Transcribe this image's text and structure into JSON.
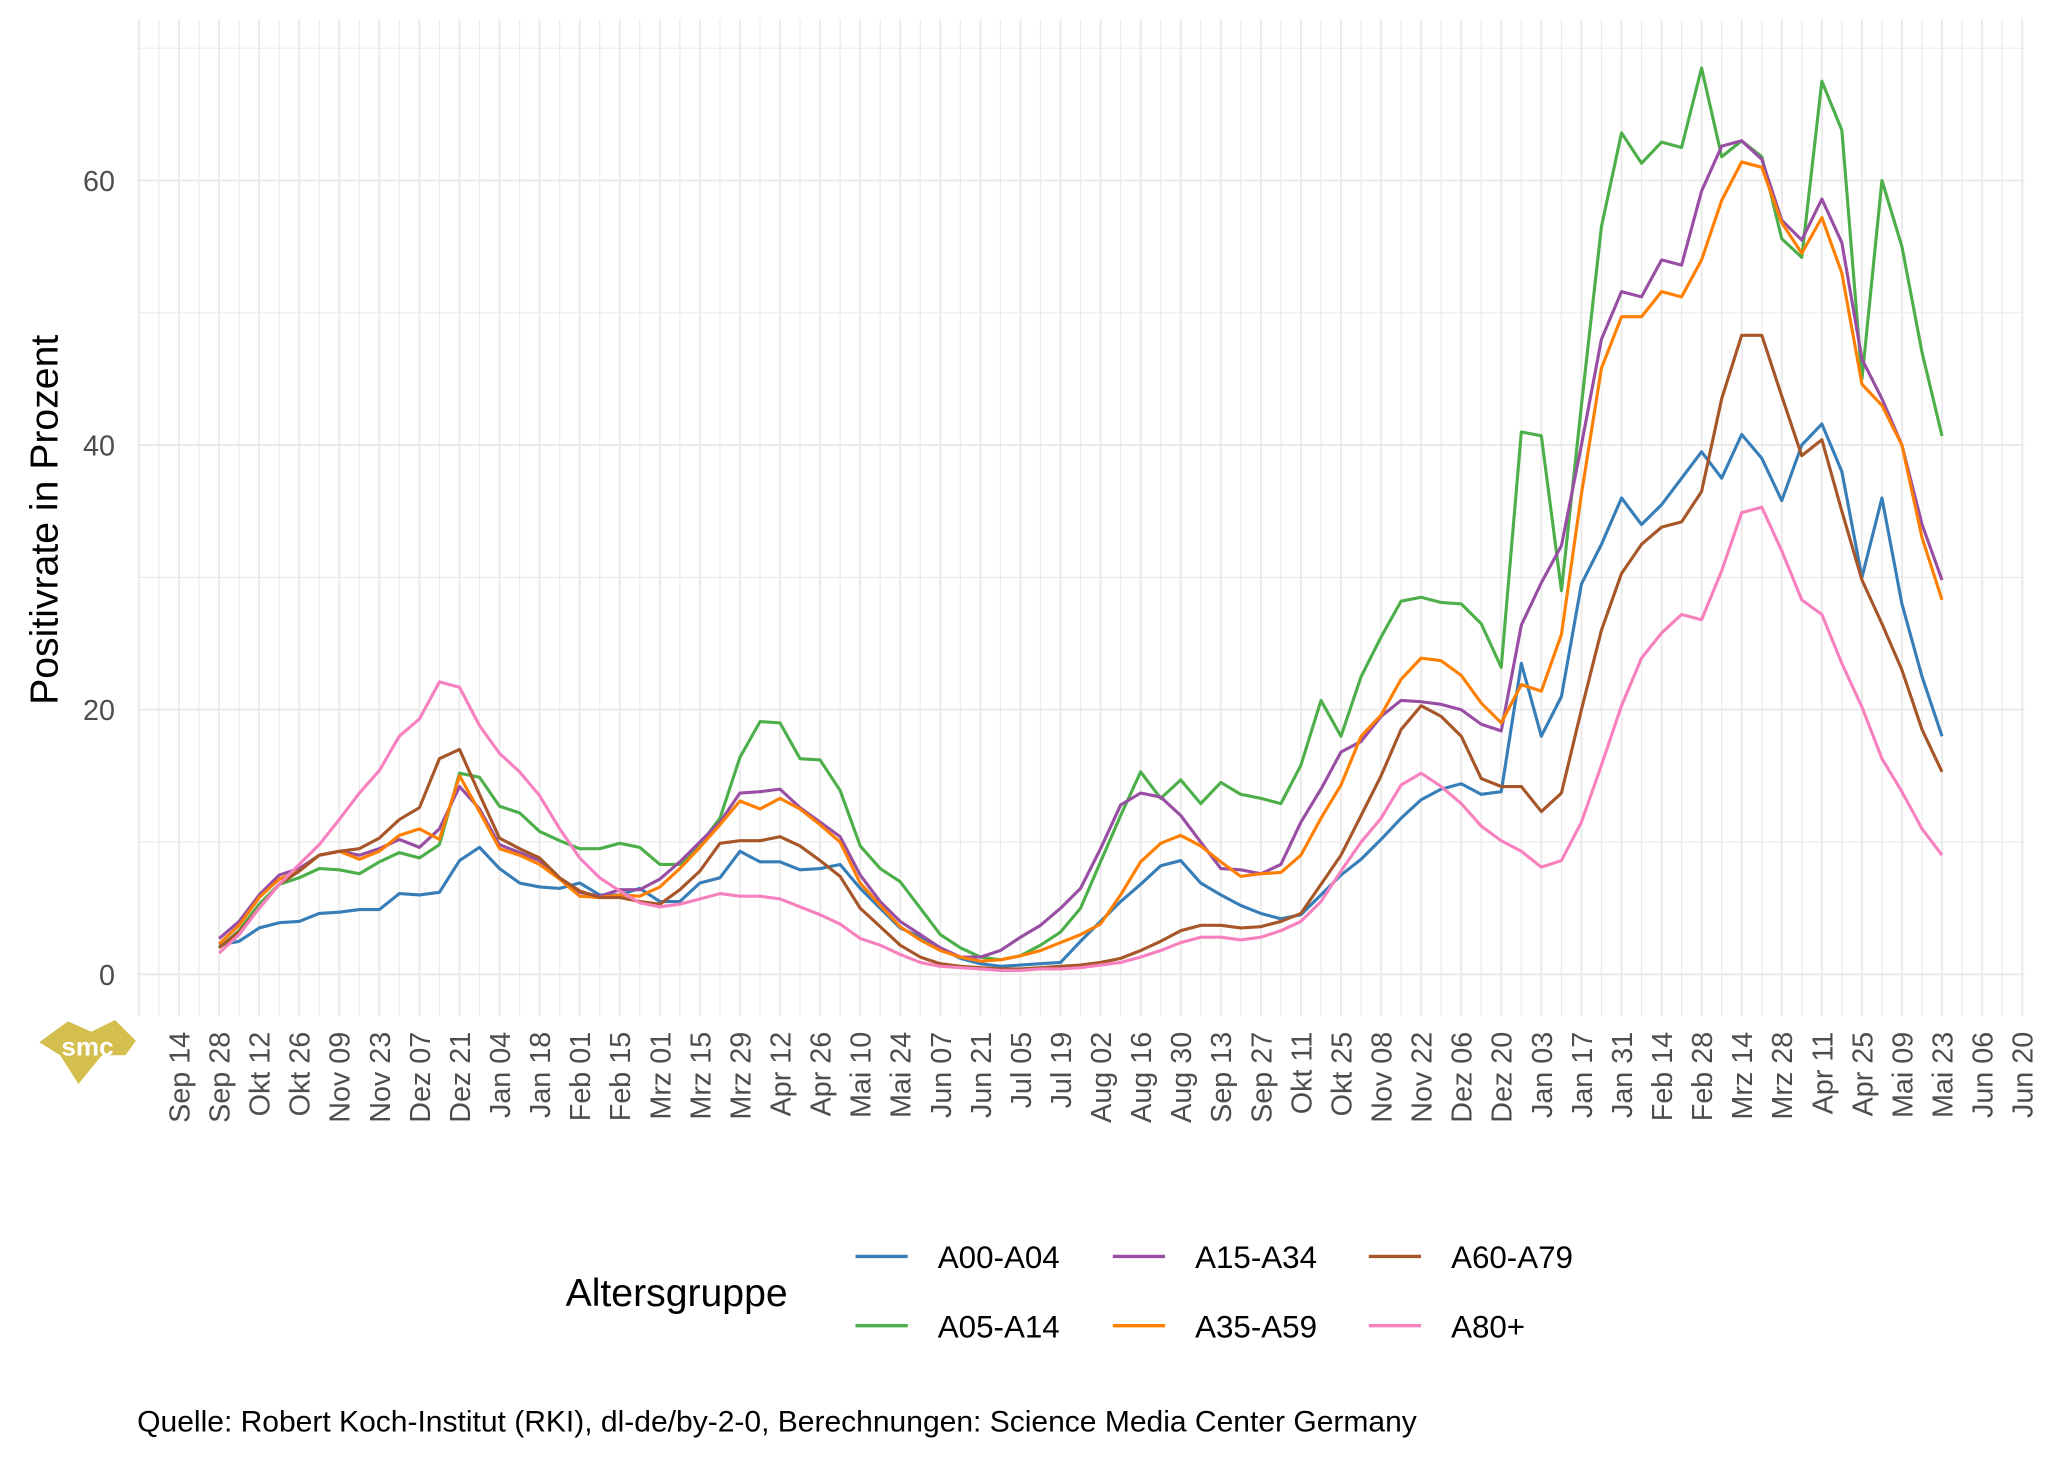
{
  "chart_data": {
    "type": "line",
    "title": "",
    "xlabel": "",
    "ylabel": "Positivrate in Prozent",
    "ylim": [
      -3.5,
      72
    ],
    "yticks": [
      0,
      20,
      40,
      60
    ],
    "grid": true,
    "x_start_week_offset": 2,
    "xtick_labels": [
      "Sep 14",
      "Sep 28",
      "Okt 12",
      "Okt 26",
      "Nov 09",
      "Nov 23",
      "Dez 07",
      "Dez 21",
      "Jan 04",
      "Jan 18",
      "Feb 01",
      "Feb 15",
      "Mrz 01",
      "Mrz 15",
      "Mrz 29",
      "Apr 12",
      "Apr 26",
      "Mai 10",
      "Mai 24",
      "Jun 07",
      "Jun 21",
      "Jul 05",
      "Jul 19",
      "Aug 02",
      "Aug 16",
      "Aug 30",
      "Sep 13",
      "Sep 27",
      "Okt 11",
      "Okt 25",
      "Nov 08",
      "Nov 22",
      "Dez 06",
      "Dez 20",
      "Jan 03",
      "Jan 17",
      "Jan 31",
      "Feb 14",
      "Feb 28",
      "Mrz 14",
      "Mrz 28",
      "Apr 11",
      "Apr 25",
      "Mai 09",
      "Mai 23",
      "Jun 06",
      "Jun 20"
    ],
    "x_note": "weekly values from Sep 28 to Mai 23 (87 weeks)",
    "legend": {
      "title": "Altersgruppe",
      "placement": "bottom"
    },
    "series": [
      {
        "name": "A00-A04",
        "color": "#377eb8",
        "values": [
          2.2,
          2.5,
          3.5,
          3.9,
          4.0,
          4.6,
          4.7,
          4.9,
          4.9,
          6.1,
          6.0,
          6.2,
          8.6,
          9.6,
          8.0,
          6.9,
          6.6,
          6.5,
          6.9,
          6.0,
          6.0,
          6.5,
          5.5,
          5.5,
          6.9,
          7.3,
          9.3,
          8.5,
          8.5,
          7.9,
          8.0,
          8.3,
          6.5,
          5.0,
          3.5,
          2.8,
          2.0,
          1.2,
          0.8,
          0.6,
          0.7,
          0.8,
          0.9,
          2.5,
          4.0,
          5.5,
          6.8,
          8.2,
          8.6,
          6.9,
          6.0,
          5.2,
          4.6,
          4.2,
          4.5,
          6.0,
          7.5,
          8.7,
          10.2,
          11.8,
          13.2,
          14.0,
          14.4,
          13.6,
          13.8,
          23.5,
          18.0,
          21.0,
          29.5,
          32.5,
          36.0,
          34.0,
          35.5,
          37.5,
          39.5,
          37.5,
          40.8,
          39.0,
          35.8,
          40.0,
          41.6,
          38.0,
          30.0,
          36.0,
          28.0,
          22.5,
          18.0
        ]
      },
      {
        "name": "A05-A14",
        "color": "#4daf4a",
        "values": [
          2.0,
          3.3,
          5.3,
          6.8,
          7.3,
          8.0,
          7.9,
          7.6,
          8.5,
          9.2,
          8.8,
          9.8,
          15.2,
          14.9,
          12.7,
          12.2,
          10.8,
          10.1,
          9.5,
          9.5,
          9.9,
          9.6,
          8.3,
          8.3,
          9.8,
          11.8,
          16.4,
          19.1,
          19.0,
          16.3,
          16.2,
          13.9,
          9.7,
          8.0,
          7.0,
          5.0,
          3.0,
          2.0,
          1.3,
          1.1,
          1.4,
          2.2,
          3.2,
          5.0,
          8.5,
          12.0,
          15.3,
          13.3,
          14.7,
          12.9,
          14.5,
          13.6,
          13.3,
          12.9,
          15.8,
          20.7,
          18.0,
          22.5,
          25.5,
          28.2,
          28.5,
          28.1,
          28.0,
          26.5,
          23.2,
          41.0,
          40.7,
          29.0,
          43.0,
          56.5,
          63.6,
          61.3,
          62.9,
          62.5,
          68.5,
          61.8,
          63.0,
          61.8,
          55.6,
          54.2,
          67.5,
          63.8,
          45.0,
          60.0,
          55.0,
          47.0,
          40.7
        ]
      },
      {
        "name": "A15-A34",
        "color": "#984ea3",
        "values": [
          2.7,
          4.0,
          6.0,
          7.5,
          8.0,
          9.0,
          9.3,
          9.0,
          9.5,
          10.2,
          9.6,
          11.0,
          14.2,
          12.5,
          9.8,
          9.2,
          8.6,
          7.2,
          6.2,
          5.9,
          6.4,
          6.4,
          7.2,
          8.5,
          10.0,
          11.5,
          13.7,
          13.8,
          14.0,
          12.6,
          11.5,
          10.4,
          7.5,
          5.5,
          4.0,
          3.0,
          2.0,
          1.3,
          1.3,
          1.8,
          2.8,
          3.7,
          5.0,
          6.5,
          9.5,
          12.8,
          13.7,
          13.4,
          12.0,
          10.0,
          8.0,
          7.9,
          7.6,
          8.3,
          11.5,
          14.0,
          16.8,
          17.6,
          19.5,
          20.7,
          20.6,
          20.4,
          20.0,
          18.9,
          18.4,
          26.4,
          29.6,
          32.4,
          40.0,
          48.0,
          51.6,
          51.2,
          54.0,
          53.6,
          59.2,
          62.6,
          63.0,
          61.6,
          57.0,
          55.5,
          58.6,
          55.3,
          46.5,
          43.5,
          40.0,
          34.0,
          29.8
        ]
      },
      {
        "name": "A35-A59",
        "color": "#ff7f00",
        "values": [
          2.3,
          3.7,
          5.8,
          7.2,
          7.8,
          9.0,
          9.3,
          8.7,
          9.3,
          10.5,
          11.0,
          10.2,
          15.0,
          12.3,
          9.5,
          9.0,
          8.3,
          7.2,
          5.9,
          5.8,
          6.0,
          5.9,
          6.6,
          8.0,
          9.6,
          11.3,
          13.1,
          12.5,
          13.3,
          12.5,
          11.3,
          10.0,
          6.9,
          5.2,
          3.6,
          2.6,
          1.8,
          1.3,
          1.0,
          1.1,
          1.4,
          1.8,
          2.4,
          3.0,
          3.8,
          6.0,
          8.5,
          9.9,
          10.5,
          9.7,
          8.5,
          7.4,
          7.6,
          7.7,
          9.0,
          11.8,
          14.3,
          18.0,
          19.6,
          22.3,
          23.9,
          23.7,
          22.6,
          20.5,
          19.0,
          21.9,
          21.4,
          25.7,
          36.3,
          45.8,
          49.7,
          49.7,
          51.6,
          51.2,
          54.0,
          58.5,
          61.4,
          61.0,
          56.8,
          54.5,
          57.2,
          53.0,
          44.6,
          43.0,
          40.0,
          33.0,
          28.3
        ]
      },
      {
        "name": "A60-A79",
        "color": "#a65628",
        "values": [
          2.0,
          3.2,
          5.0,
          6.8,
          7.8,
          9.0,
          9.3,
          9.5,
          10.3,
          11.7,
          12.6,
          16.3,
          17.0,
          13.6,
          10.3,
          9.5,
          8.8,
          7.3,
          6.3,
          5.8,
          5.8,
          5.5,
          5.3,
          6.4,
          7.8,
          9.9,
          10.1,
          10.1,
          10.4,
          9.7,
          8.6,
          7.4,
          5.0,
          3.6,
          2.2,
          1.3,
          0.8,
          0.6,
          0.5,
          0.4,
          0.4,
          0.5,
          0.6,
          0.7,
          0.9,
          1.2,
          1.8,
          2.5,
          3.3,
          3.7,
          3.7,
          3.5,
          3.6,
          4.0,
          4.6,
          6.8,
          9.0,
          12.0,
          15.0,
          18.5,
          20.3,
          19.5,
          18.0,
          14.8,
          14.2,
          14.2,
          12.3,
          13.7,
          20.0,
          26.0,
          30.3,
          32.5,
          33.8,
          34.2,
          36.5,
          43.5,
          48.3,
          48.3,
          43.7,
          39.2,
          40.4,
          35.0,
          29.8,
          26.5,
          23.0,
          18.5,
          15.3
        ]
      },
      {
        "name": "A80+",
        "color": "#f781bf",
        "values": [
          1.6,
          3.0,
          5.0,
          6.8,
          8.3,
          9.8,
          11.7,
          13.7,
          15.4,
          18.0,
          19.3,
          22.1,
          21.7,
          18.8,
          16.7,
          15.3,
          13.5,
          11.0,
          8.8,
          7.3,
          6.3,
          5.4,
          5.1,
          5.3,
          5.7,
          6.1,
          5.9,
          5.9,
          5.7,
          5.1,
          4.5,
          3.8,
          2.7,
          2.2,
          1.5,
          0.9,
          0.6,
          0.5,
          0.4,
          0.3,
          0.3,
          0.4,
          0.4,
          0.5,
          0.7,
          0.9,
          1.3,
          1.8,
          2.4,
          2.8,
          2.8,
          2.6,
          2.8,
          3.3,
          4.0,
          5.5,
          7.8,
          10.0,
          11.8,
          14.3,
          15.2,
          14.2,
          12.9,
          11.2,
          10.1,
          9.3,
          8.1,
          8.6,
          11.5,
          15.8,
          20.3,
          23.9,
          25.8,
          27.2,
          26.8,
          30.5,
          34.9,
          35.3,
          32.0,
          28.3,
          27.2,
          23.5,
          20.2,
          16.3,
          13.8,
          11.0,
          9.0
        ]
      }
    ],
    "caption": "Quelle: Robert Koch-Institut (RKI), dl-de/by-2-0, Berechnungen: Science Media Center Germany"
  },
  "logo": {
    "text": "smc",
    "color": "#d4bf4e"
  }
}
